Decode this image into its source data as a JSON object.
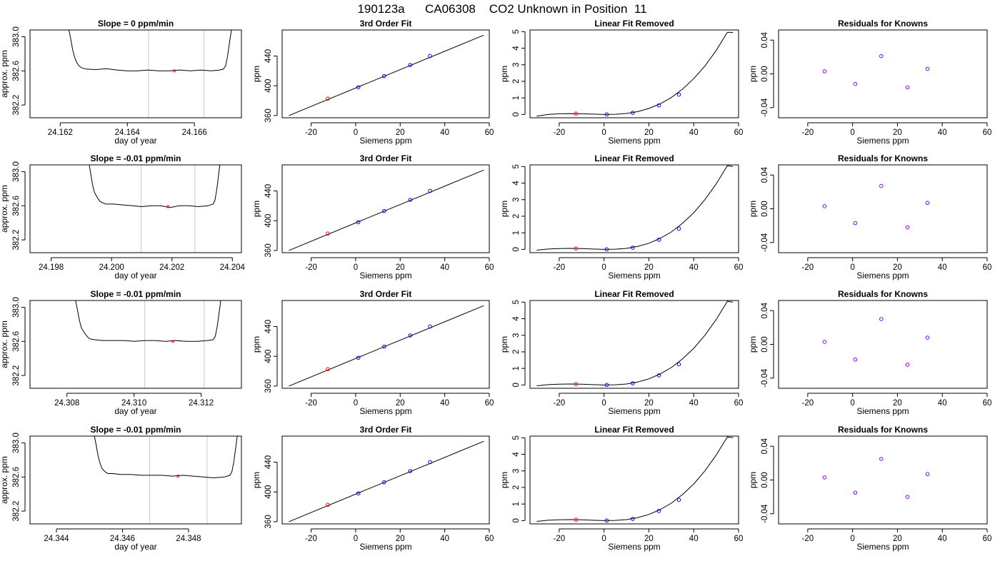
{
  "page_title": "190123a      CA06308    CO2 Unknown in Position  11",
  "colors": {
    "line": "#000000",
    "frame": "#000000",
    "vline": "#c8c8c8",
    "known_point": "#0000ff",
    "unknown_point": "#ff0000",
    "residual_point": "#8800ff"
  },
  "chart_data": [
    {
      "type": "line",
      "title": "Slope =  0  ppm/min",
      "xlabel": "day of year",
      "ylabel": "approx. ppm",
      "xlim": [
        24.1611,
        24.1674
      ],
      "ylim": [
        382.05,
        383.08
      ],
      "xticks": [
        "24.162",
        "24.164",
        "24.166"
      ],
      "yticks": [
        "382.2",
        "382.6",
        "383.0"
      ],
      "x": [
        24.16225,
        24.16231,
        24.16237,
        24.16243,
        24.16249,
        24.16256,
        24.16262,
        24.16268,
        24.16281,
        24.16306,
        24.16338,
        24.16369,
        24.164,
        24.16431,
        24.16462,
        24.16494,
        24.16525,
        24.16556,
        24.16588,
        24.16619,
        24.1665,
        24.16675,
        24.16686,
        24.16693,
        24.16699,
        24.16705,
        24.16711
      ],
      "y": [
        383.1,
        382.98,
        382.85,
        382.76,
        382.7,
        382.66,
        382.64,
        382.63,
        382.62,
        382.615,
        382.625,
        382.61,
        382.6,
        382.6,
        382.61,
        382.6,
        382.6,
        382.61,
        382.6,
        382.61,
        382.6,
        382.61,
        382.62,
        382.66,
        382.78,
        382.95,
        383.1
      ],
      "vlines": [
        24.16463,
        24.16628
      ],
      "marker": [
        24.1654,
        382.6
      ]
    },
    {
      "type": "scatter",
      "title": "3rd Order Fit",
      "xlabel": "Siemens ppm",
      "ylabel": "ppm",
      "xlim": [
        -33,
        60
      ],
      "ylim": [
        357,
        475
      ],
      "xticks": [
        "-20",
        "0",
        "20",
        "40",
        "60"
      ],
      "yticks": [
        "360",
        "400",
        "440"
      ],
      "line": {
        "x": [
          -30,
          57.5
        ],
        "y": [
          360,
          468
        ]
      },
      "knowns": {
        "x": [
          1.2,
          12.8,
          24.5,
          33.4
        ],
        "y": [
          398,
          413,
          428,
          440
        ]
      },
      "unknown": {
        "x": [
          -12.5
        ],
        "y": [
          382.7
        ]
      }
    },
    {
      "type": "scatter",
      "title": "Linear Fit Removed",
      "xlabel": "Siemens ppm",
      "ylabel": "ppm",
      "xlim": [
        -33,
        60
      ],
      "ylim": [
        -0.2,
        5.1
      ],
      "xticks": [
        "-20",
        "0",
        "20",
        "40",
        "60"
      ],
      "yticks": [
        "0",
        "1",
        "2",
        "3",
        "4",
        "5"
      ],
      "curve": {
        "x": [
          -30,
          -25,
          -20,
          -15,
          -10,
          -5,
          0,
          5,
          10,
          15,
          20,
          25,
          30,
          35,
          40,
          45,
          50,
          55,
          57.5
        ],
        "y": [
          -0.1,
          0.0,
          0.04,
          0.05,
          0.04,
          0.02,
          0.0,
          0.01,
          0.06,
          0.17,
          0.36,
          0.64,
          1.02,
          1.53,
          2.16,
          2.93,
          3.86,
          4.96,
          4.95
        ]
      },
      "knowns": {
        "x": [
          1.2,
          12.8,
          24.5,
          33.4
        ],
        "y": [
          0.0,
          0.1,
          0.55,
          1.2
        ]
      },
      "unknown": {
        "x": [
          -12.5
        ],
        "y": [
          0.05
        ]
      }
    },
    {
      "type": "scatter",
      "title": "Residuals for Knowns",
      "xlabel": "Siemens ppm",
      "ylabel": "ppm",
      "xlim": [
        -33,
        60
      ],
      "ylim": [
        -0.052,
        0.052
      ],
      "xticks": [
        "-20",
        "0",
        "20",
        "40",
        "60"
      ],
      "yticks": [
        "-0.04",
        "0.00",
        "0.04"
      ],
      "points": {
        "x": [
          -12.5,
          1.2,
          12.8,
          24.5,
          33.4
        ],
        "y": [
          0.003,
          -0.012,
          0.021,
          -0.016,
          0.006
        ]
      }
    },
    {
      "type": "line",
      "title": "Slope =  -0.01  ppm/min",
      "xlabel": "day of year",
      "ylabel": "approx. ppm",
      "xlim": [
        24.1973,
        24.2043
      ],
      "ylim": [
        382.05,
        383.08
      ],
      "xticks": [
        "24.198",
        "24.200",
        "24.202",
        "24.204"
      ],
      "yticks": [
        "382.2",
        "382.6",
        "383.0"
      ],
      "x": [
        24.19925,
        24.19931,
        24.19937,
        24.19943,
        24.19949,
        24.19956,
        24.19962,
        24.19968,
        24.19981,
        24.20006,
        24.20038,
        24.20069,
        24.201,
        24.20131,
        24.20162,
        24.20194,
        24.20225,
        24.20256,
        24.20288,
        24.20319,
        24.20336,
        24.20342,
        24.20348,
        24.20354,
        24.20359
      ],
      "y": [
        383.1,
        382.98,
        382.85,
        382.76,
        382.72,
        382.68,
        382.65,
        382.64,
        382.62,
        382.62,
        382.61,
        382.6,
        382.59,
        382.6,
        382.6,
        382.58,
        382.6,
        382.6,
        382.59,
        382.6,
        382.62,
        382.66,
        382.78,
        382.95,
        383.1
      ],
      "vlines": [
        24.20098,
        24.20276
      ],
      "marker": [
        24.20187,
        382.59
      ]
    },
    {
      "type": "scatter",
      "title": "3rd Order Fit",
      "xlabel": "Siemens ppm",
      "ylabel": "ppm",
      "xlim": [
        -33,
        60
      ],
      "ylim": [
        357,
        475
      ],
      "xticks": [
        "-20",
        "0",
        "20",
        "40",
        "60"
      ],
      "yticks": [
        "360",
        "400",
        "440"
      ],
      "line": {
        "x": [
          -30,
          57.5
        ],
        "y": [
          360,
          468
        ]
      },
      "knowns": {
        "x": [
          1.2,
          12.8,
          24.5,
          33.4
        ],
        "y": [
          398,
          413,
          428,
          440
        ]
      },
      "unknown": {
        "x": [
          -12.5
        ],
        "y": [
          382.7
        ]
      }
    },
    {
      "type": "scatter",
      "title": "Linear Fit Removed",
      "xlabel": "Siemens ppm",
      "ylabel": "ppm",
      "xlim": [
        -33,
        60
      ],
      "ylim": [
        -0.2,
        5.1
      ],
      "xticks": [
        "-20",
        "0",
        "20",
        "40",
        "60"
      ],
      "yticks": [
        "0",
        "1",
        "2",
        "3",
        "4",
        "5"
      ],
      "curve": {
        "x": [
          -30,
          -25,
          -20,
          -15,
          -10,
          -5,
          0,
          5,
          10,
          15,
          20,
          25,
          30,
          35,
          40,
          45,
          50,
          55,
          57.5
        ],
        "y": [
          -0.05,
          0.02,
          0.05,
          0.06,
          0.05,
          0.02,
          0.0,
          0.01,
          0.06,
          0.18,
          0.37,
          0.66,
          1.05,
          1.57,
          2.21,
          3.0,
          3.95,
          5.05,
          5.0
        ]
      },
      "knowns": {
        "x": [
          1.2,
          12.8,
          24.5,
          33.4
        ],
        "y": [
          0.0,
          0.1,
          0.58,
          1.25
        ]
      },
      "unknown": {
        "x": [
          -12.5
        ],
        "y": [
          0.05
        ]
      }
    },
    {
      "type": "scatter",
      "title": "Residuals for Knowns",
      "xlabel": "Siemens ppm",
      "ylabel": "ppm",
      "xlim": [
        -33,
        60
      ],
      "ylim": [
        -0.052,
        0.052
      ],
      "xticks": [
        "-20",
        "0",
        "20",
        "40",
        "60"
      ],
      "yticks": [
        "-0.04",
        "0.00",
        "0.04"
      ],
      "points": {
        "x": [
          -12.5,
          1.2,
          12.8,
          24.5,
          33.4
        ],
        "y": [
          0.003,
          -0.017,
          0.027,
          -0.022,
          0.007
        ]
      }
    },
    {
      "type": "line",
      "title": "Slope =  -0.01  ppm/min",
      "xlabel": "day of year",
      "ylabel": "approx. ppm",
      "xlim": [
        24.3069,
        24.3132
      ],
      "ylim": [
        382.05,
        383.08
      ],
      "xticks": [
        "24.308",
        "24.310",
        "24.312"
      ],
      "yticks": [
        "382.2",
        "382.6",
        "383.0"
      ],
      "x": [
        24.30825,
        24.30831,
        24.30837,
        24.30843,
        24.30849,
        24.30856,
        24.30862,
        24.30868,
        24.30881,
        24.30906,
        24.30938,
        24.30969,
        24.31,
        24.31031,
        24.31062,
        24.31094,
        24.31125,
        24.31156,
        24.31188,
        24.31219,
        24.31236,
        24.31242,
        24.31248,
        24.31254,
        24.31259
      ],
      "y": [
        383.1,
        382.98,
        382.85,
        382.76,
        382.72,
        382.68,
        382.65,
        382.63,
        382.62,
        382.61,
        382.61,
        382.61,
        382.6,
        382.61,
        382.61,
        382.6,
        382.61,
        382.6,
        382.6,
        382.61,
        382.62,
        382.66,
        382.78,
        382.95,
        383.1
      ],
      "vlines": [
        24.31032,
        24.31209
      ],
      "marker": [
        24.31116,
        382.6
      ]
    },
    {
      "type": "scatter",
      "title": "3rd Order Fit",
      "xlabel": "Siemens ppm",
      "ylabel": "ppm",
      "xlim": [
        -33,
        60
      ],
      "ylim": [
        357,
        475
      ],
      "xticks": [
        "-20",
        "0",
        "20",
        "40",
        "60"
      ],
      "yticks": [
        "360",
        "400",
        "440"
      ],
      "line": {
        "x": [
          -30,
          57.5
        ],
        "y": [
          360,
          468
        ]
      },
      "knowns": {
        "x": [
          1.2,
          12.8,
          24.5,
          33.4
        ],
        "y": [
          398,
          413,
          428,
          440
        ]
      },
      "unknown": {
        "x": [
          -12.5
        ],
        "y": [
          382.7
        ]
      }
    },
    {
      "type": "scatter",
      "title": "Linear Fit Removed",
      "xlabel": "Siemens ppm",
      "ylabel": "ppm",
      "xlim": [
        -33,
        60
      ],
      "ylim": [
        -0.2,
        5.1
      ],
      "xticks": [
        "-20",
        "0",
        "20",
        "40",
        "60"
      ],
      "yticks": [
        "0",
        "1",
        "2",
        "3",
        "4",
        "5"
      ],
      "curve": {
        "x": [
          -30,
          -25,
          -20,
          -15,
          -10,
          -5,
          0,
          5,
          10,
          15,
          20,
          25,
          30,
          35,
          40,
          45,
          50,
          55,
          57.5
        ],
        "y": [
          -0.05,
          0.02,
          0.05,
          0.06,
          0.05,
          0.02,
          0.0,
          0.01,
          0.06,
          0.18,
          0.37,
          0.66,
          1.05,
          1.57,
          2.21,
          3.0,
          3.95,
          5.05,
          5.0
        ]
      },
      "knowns": {
        "x": [
          1.2,
          12.8,
          24.5,
          33.4
        ],
        "y": [
          0.0,
          0.1,
          0.58,
          1.25
        ]
      },
      "unknown": {
        "x": [
          -12.5
        ],
        "y": [
          0.05
        ]
      }
    },
    {
      "type": "scatter",
      "title": "Residuals for Knowns",
      "xlabel": "Siemens ppm",
      "ylabel": "ppm",
      "xlim": [
        -33,
        60
      ],
      "ylim": [
        -0.052,
        0.052
      ],
      "xticks": [
        "-20",
        "0",
        "20",
        "40",
        "60"
      ],
      "yticks": [
        "-0.04",
        "0.00",
        "0.04"
      ],
      "points": {
        "x": [
          -12.5,
          1.2,
          12.8,
          24.5,
          33.4
        ],
        "y": [
          0.003,
          -0.018,
          0.03,
          -0.024,
          0.008
        ]
      }
    },
    {
      "type": "line",
      "title": "Slope =  -0.01  ppm/min",
      "xlabel": "day of year",
      "ylabel": "approx. ppm",
      "xlim": [
        24.3432,
        24.3496
      ],
      "ylim": [
        382.05,
        383.08
      ],
      "xticks": [
        "24.344",
        "24.346",
        "24.348"
      ],
      "yticks": [
        "382.2",
        "382.6",
        "383.0"
      ],
      "x": [
        24.34514,
        24.3452,
        24.34526,
        24.34532,
        24.34538,
        24.34545,
        24.34551,
        24.34557,
        24.3457,
        24.34595,
        24.34627,
        24.34658,
        24.34689,
        24.3472,
        24.34751,
        24.34783,
        24.34814,
        24.34845,
        24.34877,
        24.34908,
        24.34925,
        24.34931,
        24.34937,
        24.34943,
        24.34948
      ],
      "y": [
        383.1,
        382.98,
        382.85,
        382.76,
        382.7,
        382.67,
        382.65,
        382.64,
        382.64,
        382.63,
        382.63,
        382.62,
        382.62,
        382.62,
        382.61,
        382.62,
        382.61,
        382.6,
        382.59,
        382.6,
        382.62,
        382.66,
        382.78,
        382.95,
        383.1
      ],
      "vlines": [
        24.34682,
        24.34856
      ],
      "marker": [
        24.34768,
        382.61
      ]
    },
    {
      "type": "scatter",
      "title": "3rd Order Fit",
      "xlabel": "Siemens ppm",
      "ylabel": "ppm",
      "xlim": [
        -33,
        60
      ],
      "ylim": [
        357,
        475
      ],
      "xticks": [
        "-20",
        "0",
        "20",
        "40",
        "60"
      ],
      "yticks": [
        "360",
        "400",
        "440"
      ],
      "line": {
        "x": [
          -30,
          57.5
        ],
        "y": [
          360,
          468
        ]
      },
      "knowns": {
        "x": [
          1.2,
          12.8,
          24.5,
          33.4
        ],
        "y": [
          398,
          413,
          428,
          440
        ]
      },
      "unknown": {
        "x": [
          -12.5
        ],
        "y": [
          382.7
        ]
      }
    },
    {
      "type": "scatter",
      "title": "Linear Fit Removed",
      "xlabel": "Siemens ppm",
      "ylabel": "ppm",
      "xlim": [
        -33,
        60
      ],
      "ylim": [
        -0.2,
        5.1
      ],
      "xticks": [
        "-20",
        "0",
        "20",
        "40",
        "60"
      ],
      "yticks": [
        "0",
        "1",
        "2",
        "3",
        "4",
        "5"
      ],
      "curve": {
        "x": [
          -30,
          -25,
          -20,
          -15,
          -10,
          -5,
          0,
          5,
          10,
          15,
          20,
          25,
          30,
          35,
          40,
          45,
          50,
          55,
          57.5
        ],
        "y": [
          -0.05,
          0.02,
          0.05,
          0.06,
          0.05,
          0.02,
          0.0,
          0.01,
          0.06,
          0.18,
          0.37,
          0.66,
          1.05,
          1.57,
          2.21,
          3.0,
          3.95,
          5.05,
          5.0
        ]
      },
      "knowns": {
        "x": [
          1.2,
          12.8,
          24.5,
          33.4
        ],
        "y": [
          0.0,
          0.1,
          0.58,
          1.25
        ]
      },
      "unknown": {
        "x": [
          -12.5
        ],
        "y": [
          0.05
        ]
      }
    },
    {
      "type": "scatter",
      "title": "Residuals for Knowns",
      "xlabel": "Siemens ppm",
      "ylabel": "ppm",
      "xlim": [
        -33,
        60
      ],
      "ylim": [
        -0.052,
        0.052
      ],
      "xticks": [
        "-20",
        "0",
        "20",
        "40",
        "60"
      ],
      "yticks": [
        "-0.04",
        "0.00",
        "0.04"
      ],
      "points": {
        "x": [
          -12.5,
          1.2,
          12.8,
          24.5,
          33.4
        ],
        "y": [
          0.003,
          -0.015,
          0.025,
          -0.02,
          0.007
        ]
      }
    }
  ]
}
